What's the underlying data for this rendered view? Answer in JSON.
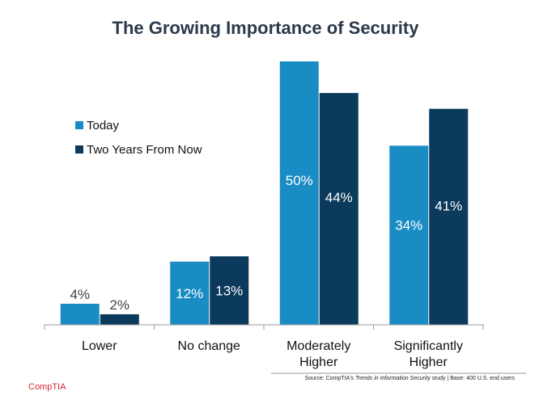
{
  "chart_data": {
    "type": "bar",
    "title": "The Growing Importance of Security",
    "categories": [
      "Lower",
      "No change",
      "Moderately Higher",
      "Significantly Higher"
    ],
    "category_lines": [
      [
        "Lower"
      ],
      [
        "No change"
      ],
      [
        "Moderately",
        "Higher"
      ],
      [
        "Significantly",
        "Higher"
      ]
    ],
    "series": [
      {
        "name": "Today",
        "values": [
          4,
          12,
          50,
          34
        ],
        "labels": [
          "4%",
          "12%",
          "50%",
          "34%"
        ],
        "color": "#1a8cc4"
      },
      {
        "name": "Two Years From Now",
        "values": [
          2,
          13,
          44,
          41
        ],
        "labels": [
          "2%",
          "13%",
          "44%",
          "41%"
        ],
        "color": "#0c3a5c"
      }
    ],
    "ylim": [
      0,
      52
    ],
    "xlabel": "",
    "ylabel": "",
    "legend_position": "left",
    "grid": false
  },
  "footer": {
    "source_prefix": "Source: CompTIA's ",
    "source_study": "Trends in Information Security",
    "source_suffix": " study | Base: 400 U.S. end users",
    "brand": "CompTIA"
  }
}
